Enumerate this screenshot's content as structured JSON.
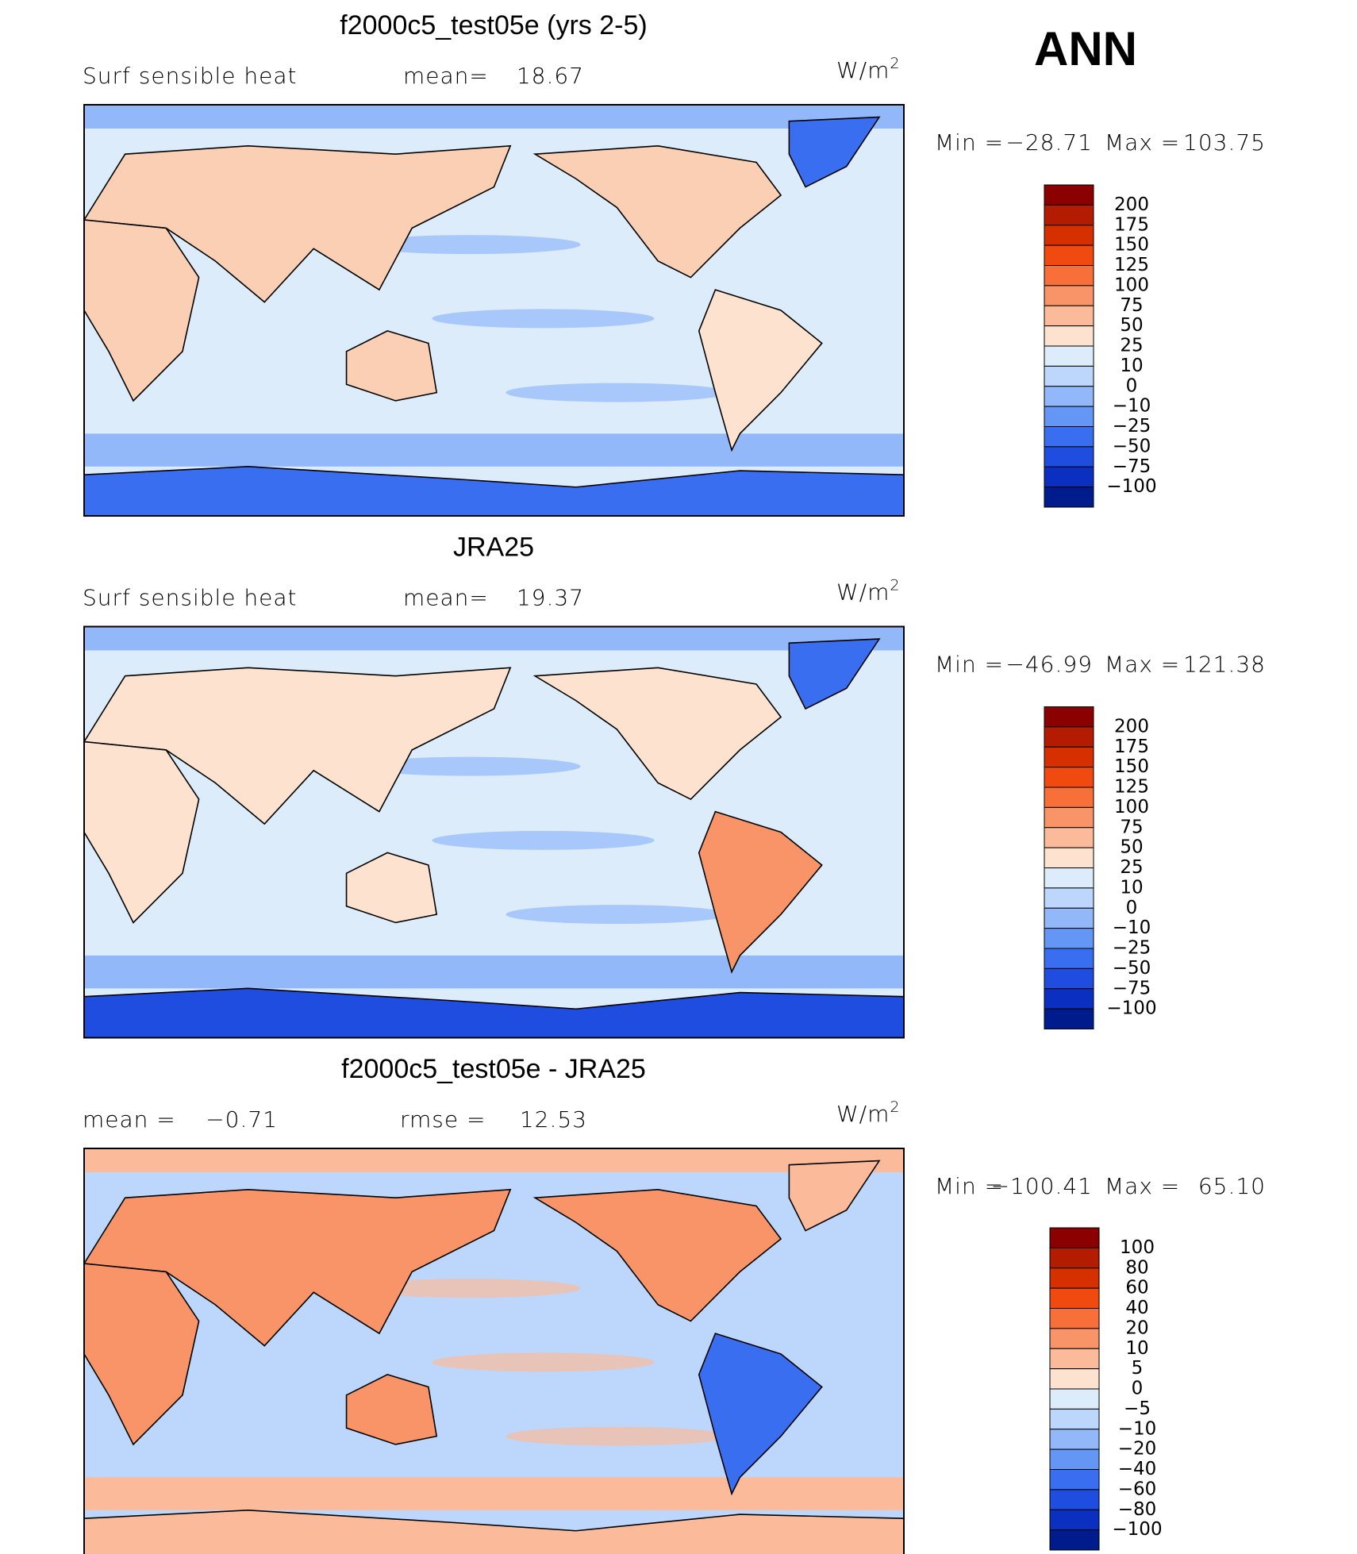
{
  "season": "ANN",
  "panels": [
    {
      "title": "f2000c5_test05e (yrs 2-5)",
      "variable": "Surf  sensible  heat",
      "stats": [
        {
          "label": "mean=",
          "value": "18.67"
        }
      ],
      "units": "W/m",
      "units_sup": "2",
      "min_label": "Min  =",
      "min_value": "−28.71",
      "max_label": "Max  =",
      "max_value": "103.75",
      "colorbar": {
        "labels": [
          "200",
          "175",
          "150",
          "125",
          "100",
          "75",
          "50",
          "25",
          "10",
          "0",
          "−10",
          "−25",
          "−50",
          "−75",
          "−100"
        ]
      }
    },
    {
      "title": "JRA25",
      "variable": "Surf  sensible  heat",
      "stats": [
        {
          "label": "mean=",
          "value": "19.37"
        }
      ],
      "units": "W/m",
      "units_sup": "2",
      "min_label": "Min  =",
      "min_value": "−46.99",
      "max_label": "Max  =",
      "max_value": "121.38",
      "colorbar": {
        "labels": [
          "200",
          "175",
          "150",
          "125",
          "100",
          "75",
          "50",
          "25",
          "10",
          "0",
          "−10",
          "−25",
          "−50",
          "−75",
          "−100"
        ]
      }
    },
    {
      "title": "f2000c5_test05e - JRA25",
      "stats": [
        {
          "label": "mean =",
          "value": "−0.71"
        },
        {
          "label": "rmse =",
          "value": "12.53"
        }
      ],
      "units": "W/m",
      "units_sup": "2",
      "min_label": "Min  =",
      "min_value": "−100.41",
      "max_label": "Max  =",
      "max_value": "65.10",
      "colorbar": {
        "labels": [
          "100",
          "80",
          "60",
          "40",
          "20",
          "10",
          "5",
          "0",
          "−5",
          "−10",
          "−20",
          "−40",
          "−60",
          "−80",
          "−100"
        ]
      }
    }
  ],
  "colorbar_colors": [
    "#8b0000",
    "#b31c00",
    "#d73000",
    "#f04a10",
    "#f86f3a",
    "#f99468",
    "#fbbb9a",
    "#fde3cf",
    "#dcecfb",
    "#bcd7fb",
    "#92b8fa",
    "#6496f5",
    "#3a6ef0",
    "#1e4de0",
    "#0b2fc0",
    "#001b8c"
  ]
}
